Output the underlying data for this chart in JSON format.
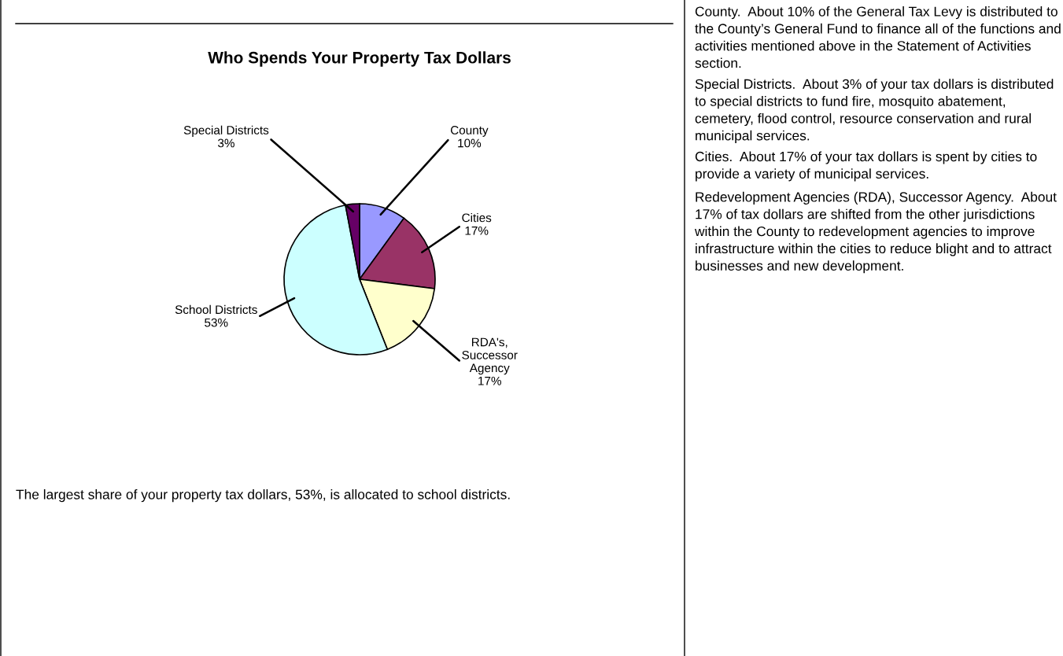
{
  "chart_data": {
    "type": "pie",
    "title": "Who Spends Your Property Tax Dollars",
    "categories": [
      "County\n10%",
      "Cities\n17%",
      "RDA's,\nSuccessor\nAgency\n17%",
      "School Districts\n53%",
      "Special Districts\n3%"
    ],
    "values": [
      10,
      17,
      17,
      53,
      3
    ],
    "colors": [
      "#9999ff",
      "#993366",
      "#ffffcc",
      "#ccffff",
      "#660066"
    ],
    "annotations": [
      "The largest share of your property tax dollars, 53%, is allocated to school districts.",
      "County.  About 10% of the General Tax Levy is distributed to the County’s General Fund to finance all of the functions and activities mentioned above in the Statement of Activities section.",
      "Special Districts.  About 3% of your tax dollars is distributed to special districts to fund fire, mosquito abatement, cemetery, flood control, resource conservation and rural municipal services.",
      "Cities.  About 17% of your tax dollars is spent by cities to provide a variety of municipal services.",
      "Redevelopment Agencies (RDA), Successor Agency.  About 17% of tax dollars are shifted from the other jurisdictions within the County to redevelopment agencies to improve infrastructure within the cities to reduce blight and to attract businesses and new development."
    ]
  }
}
